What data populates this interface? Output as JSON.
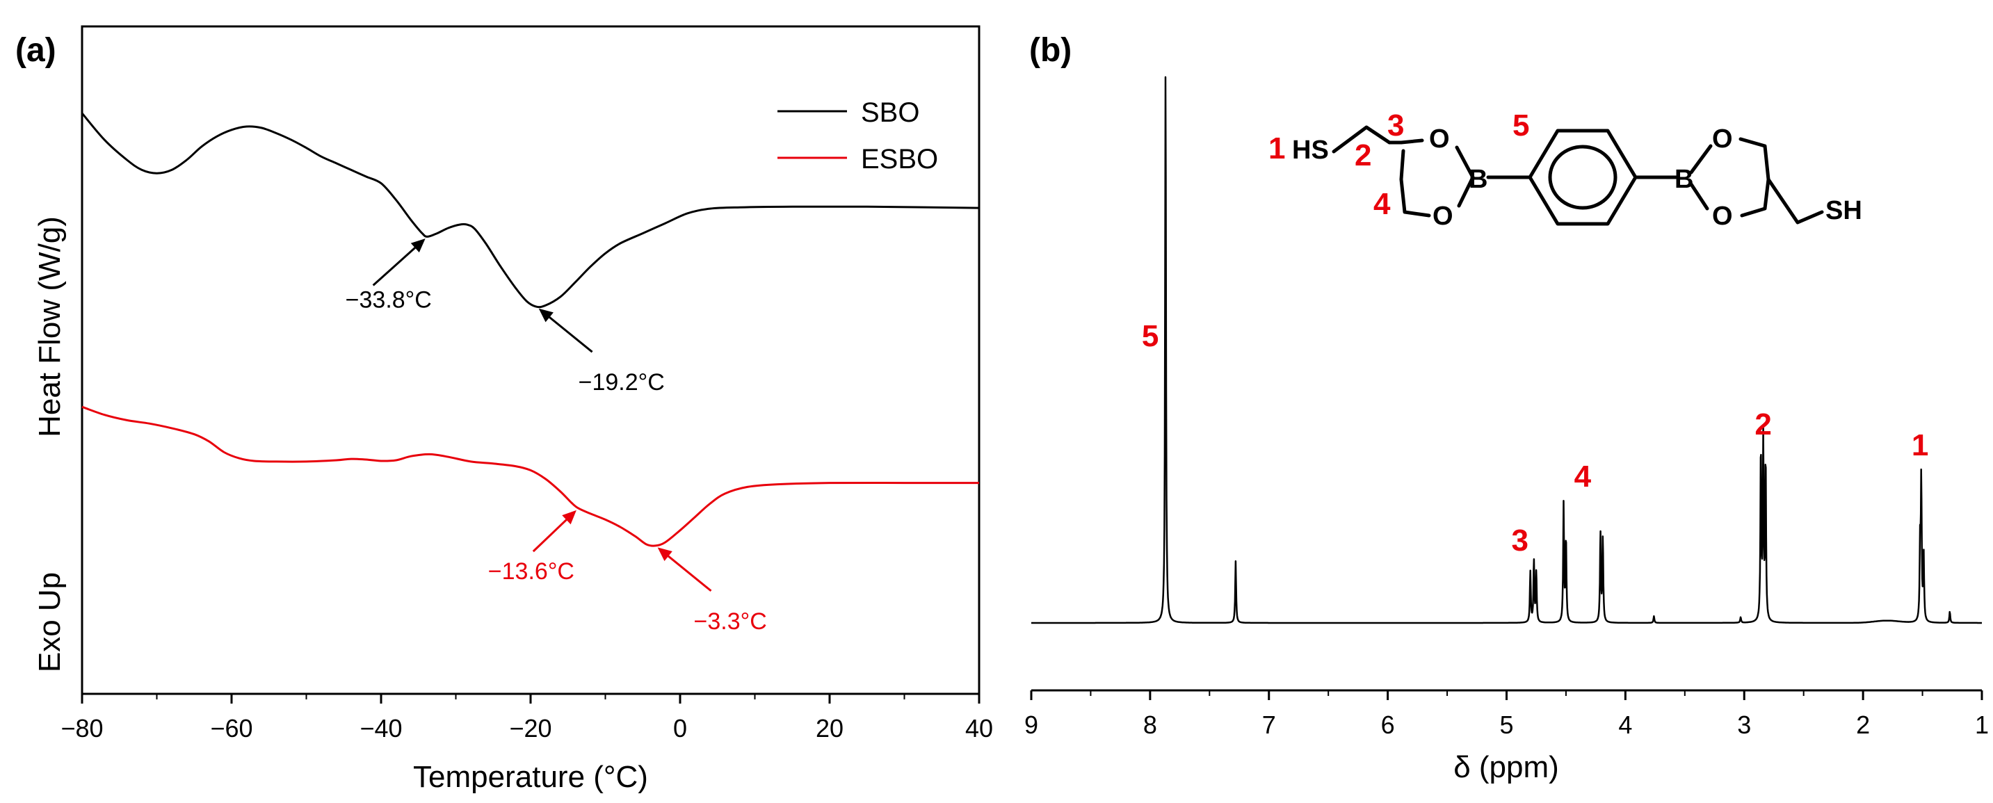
{
  "colors": {
    "sbo": "#000000",
    "esbo": "#e8000b",
    "label_red": "#e8000b"
  },
  "chart_data": [
    {
      "panel_label": "(a)",
      "type": "line",
      "title": "",
      "xlabel": "Temperature (°C)",
      "ylabel": "Heat Flow (W/g)",
      "side_label": "Exo Up",
      "xlim": [
        -80,
        40
      ],
      "ylim": [
        0,
        1
      ],
      "xticks": [
        -80,
        -60,
        -40,
        -20,
        0,
        20,
        40
      ],
      "xtick_labels": [
        "−80",
        "−60",
        "−40",
        "−20",
        "0",
        "20",
        "40"
      ],
      "grid": false,
      "legend_position": "top-right",
      "series": [
        {
          "name": "SBO",
          "color": "#000000",
          "points": [
            [
              -80,
              0.87
            ],
            [
              -77,
              0.83
            ],
            [
              -74,
              0.8
            ],
            [
              -72,
              0.785
            ],
            [
              -70,
              0.78
            ],
            [
              -68,
              0.785
            ],
            [
              -66,
              0.8
            ],
            [
              -64,
              0.82
            ],
            [
              -62,
              0.835
            ],
            [
              -60,
              0.845
            ],
            [
              -58,
              0.85
            ],
            [
              -56,
              0.848
            ],
            [
              -54,
              0.84
            ],
            [
              -52,
              0.83
            ],
            [
              -50,
              0.818
            ],
            [
              -48,
              0.805
            ],
            [
              -46,
              0.795
            ],
            [
              -44,
              0.785
            ],
            [
              -42,
              0.775
            ],
            [
              -40,
              0.765
            ],
            [
              -38,
              0.74
            ],
            [
              -36,
              0.71
            ],
            [
              -34.5,
              0.69
            ],
            [
              -33.8,
              0.685
            ],
            [
              -32.5,
              0.69
            ],
            [
              -31,
              0.698
            ],
            [
              -29.5,
              0.703
            ],
            [
              -28.5,
              0.703
            ],
            [
              -27.5,
              0.697
            ],
            [
              -26,
              0.675
            ],
            [
              -24,
              0.64
            ],
            [
              -22,
              0.608
            ],
            [
              -20.5,
              0.588
            ],
            [
              -19.2,
              0.58
            ],
            [
              -18,
              0.582
            ],
            [
              -16,
              0.595
            ],
            [
              -14,
              0.617
            ],
            [
              -12,
              0.64
            ],
            [
              -10,
              0.66
            ],
            [
              -8,
              0.675
            ],
            [
              -5,
              0.69
            ],
            [
              -2,
              0.705
            ],
            [
              1,
              0.72
            ],
            [
              4,
              0.727
            ],
            [
              8,
              0.729
            ],
            [
              15,
              0.73
            ],
            [
              25,
              0.73
            ],
            [
              40,
              0.728
            ]
          ]
        },
        {
          "name": "ESBO",
          "color": "#e8000b",
          "points": [
            [
              -80,
              0.43
            ],
            [
              -77,
              0.418
            ],
            [
              -74,
              0.41
            ],
            [
              -71,
              0.405
            ],
            [
              -68,
              0.398
            ],
            [
              -65,
              0.389
            ],
            [
              -63,
              0.378
            ],
            [
              -61,
              0.362
            ],
            [
              -59,
              0.353
            ],
            [
              -57,
              0.349
            ],
            [
              -54,
              0.348
            ],
            [
              -50,
              0.348
            ],
            [
              -46,
              0.35
            ],
            [
              -44,
              0.352
            ],
            [
              -42,
              0.351
            ],
            [
              -40,
              0.349
            ],
            [
              -38,
              0.35
            ],
            [
              -36,
              0.356
            ],
            [
              -33.5,
              0.359
            ],
            [
              -31,
              0.355
            ],
            [
              -28,
              0.348
            ],
            [
              -25,
              0.345
            ],
            [
              -22,
              0.341
            ],
            [
              -20,
              0.335
            ],
            [
              -18,
              0.322
            ],
            [
              -16,
              0.303
            ],
            [
              -14.5,
              0.286
            ],
            [
              -13.6,
              0.278
            ],
            [
              -12,
              0.27
            ],
            [
              -10,
              0.261
            ],
            [
              -8,
              0.25
            ],
            [
              -6,
              0.236
            ],
            [
              -4.5,
              0.224
            ],
            [
              -3.3,
              0.222
            ],
            [
              -2,
              0.227
            ],
            [
              0,
              0.245
            ],
            [
              2,
              0.265
            ],
            [
              4,
              0.285
            ],
            [
              6,
              0.3
            ],
            [
              9,
              0.31
            ],
            [
              13,
              0.314
            ],
            [
              20,
              0.316
            ],
            [
              30,
              0.316
            ],
            [
              40,
              0.316
            ]
          ]
        }
      ],
      "annotations": [
        {
          "text": "−33.8°C",
          "x": -33.8,
          "series": "SBO",
          "color": "#000000"
        },
        {
          "text": "−19.2°C",
          "x": -19.2,
          "series": "SBO",
          "color": "#000000"
        },
        {
          "text": "−13.6°C",
          "x": -13.6,
          "series": "ESBO",
          "color": "#e8000b"
        },
        {
          "text": "−3.3°C",
          "x": -3.3,
          "series": "ESBO",
          "color": "#e8000b"
        }
      ]
    },
    {
      "panel_label": "(b)",
      "type": "line",
      "title": "",
      "xlabel": "δ (ppm)",
      "ylabel": "",
      "xlim": [
        9,
        1
      ],
      "ylim": [
        0,
        1
      ],
      "x_reversed": true,
      "xticks": [
        9,
        8,
        7,
        6,
        5,
        4,
        3,
        2,
        1
      ],
      "xtick_labels": [
        "9",
        "8",
        "7",
        "6",
        "5",
        "4",
        "3",
        "2",
        "1"
      ],
      "grid": false,
      "baseline": 0.1,
      "peaks": [
        {
          "ppm": 7.87,
          "height": 1.0
        },
        {
          "ppm": 7.28,
          "height": 0.11
        },
        {
          "ppm": 4.8,
          "height": 0.09
        },
        {
          "ppm": 4.77,
          "height": 0.11
        },
        {
          "ppm": 4.75,
          "height": 0.09
        },
        {
          "ppm": 4.52,
          "height": 0.21
        },
        {
          "ppm": 4.5,
          "height": 0.15
        },
        {
          "ppm": 4.21,
          "height": 0.16
        },
        {
          "ppm": 4.19,
          "height": 0.15
        },
        {
          "ppm": 2.86,
          "height": 0.31
        },
        {
          "ppm": 2.84,
          "height": 0.32
        },
        {
          "ppm": 2.82,
          "height": 0.29
        },
        {
          "ppm": 1.52,
          "height": 0.13
        },
        {
          "ppm": 1.51,
          "height": 0.25
        },
        {
          "ppm": 1.49,
          "height": 0.12
        },
        {
          "ppm": 1.27,
          "height": 0.02
        },
        {
          "ppm": 3.76,
          "height": 0.012
        },
        {
          "ppm": 3.03,
          "height": 0.01
        }
      ],
      "peak_labels": [
        {
          "text": "5",
          "ppm": 7.87,
          "color": "#e8000b"
        },
        {
          "text": "3",
          "ppm": 4.77,
          "color": "#e8000b"
        },
        {
          "text": "4",
          "ppm": 4.36,
          "color": "#e8000b"
        },
        {
          "text": "2",
          "ppm": 2.84,
          "color": "#e8000b"
        },
        {
          "text": "1",
          "ppm": 1.52,
          "color": "#e8000b"
        }
      ],
      "structure": {
        "atoms": [
          "HS",
          "O",
          "B",
          "O",
          "B",
          "O",
          "O",
          "SH"
        ],
        "position_labels": [
          "1",
          "2",
          "3",
          "4",
          "5"
        ]
      }
    }
  ]
}
